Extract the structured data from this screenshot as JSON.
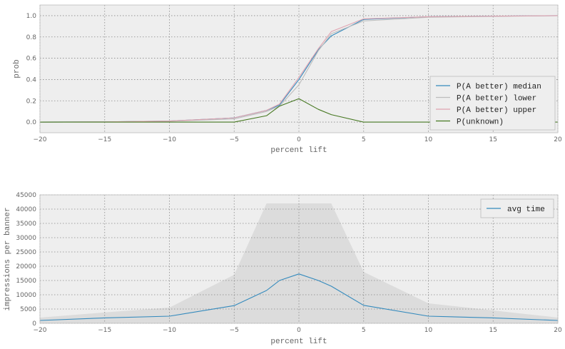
{
  "chart_data": [
    {
      "type": "line",
      "title": "",
      "xlabel": "percent lift",
      "ylabel": "prob",
      "xlim": [
        -20,
        20
      ],
      "ylim": [
        -0.1,
        1.1
      ],
      "xticks": [
        -20,
        -15,
        -10,
        -5,
        0,
        5,
        10,
        15,
        20
      ],
      "xtick_labels": [
        "−20",
        "−15",
        "−10",
        "−5",
        "0",
        "5",
        "10",
        "15",
        "20"
      ],
      "yticks": [
        0.0,
        0.2,
        0.4,
        0.6,
        0.8,
        1.0
      ],
      "ytick_labels": [
        "0.0",
        "0.2",
        "0.4",
        "0.6",
        "0.8",
        "1.0"
      ],
      "grid": true,
      "legend_position": "lower-right",
      "x": [
        -20,
        -15,
        -10,
        -5,
        -2.5,
        -1.5,
        0,
        1.5,
        2.5,
        5,
        10,
        15,
        20
      ],
      "series": [
        {
          "name": "P(A better) median",
          "color": "#348abd",
          "values": [
            0.0,
            0.002,
            0.01,
            0.04,
            0.11,
            0.16,
            0.4,
            0.68,
            0.81,
            0.965,
            0.99,
            0.995,
            1.0
          ]
        },
        {
          "name": "P(A better) lower",
          "color": "#bcbcbc",
          "values": [
            0.0,
            0.002,
            0.008,
            0.03,
            0.1,
            0.15,
            0.35,
            0.67,
            0.83,
            0.95,
            0.985,
            0.993,
            1.0
          ]
        },
        {
          "name": "P(A better) upper",
          "color": "#e0a3b0",
          "values": [
            0.0,
            0.002,
            0.01,
            0.04,
            0.11,
            0.17,
            0.42,
            0.69,
            0.85,
            0.97,
            0.99,
            0.995,
            1.0
          ]
        },
        {
          "name": "P(unknown)",
          "color": "#467821",
          "values": [
            0.0,
            0.0,
            0.0,
            0.0,
            0.06,
            0.15,
            0.22,
            0.12,
            0.07,
            0.0,
            0.0,
            0.0,
            0.0
          ]
        }
      ]
    },
    {
      "type": "area",
      "title": "",
      "xlabel": "percent lift",
      "ylabel": "impressions per banner",
      "xlim": [
        -20,
        20
      ],
      "ylim": [
        0,
        45000
      ],
      "xticks": [
        -20,
        -15,
        -10,
        -5,
        0,
        5,
        10,
        15,
        20
      ],
      "xtick_labels": [
        "−20",
        "−15",
        "−10",
        "−5",
        "0",
        "5",
        "10",
        "15",
        "20"
      ],
      "yticks": [
        0,
        5000,
        10000,
        15000,
        20000,
        25000,
        30000,
        35000,
        40000,
        45000
      ],
      "ytick_labels": [
        "0",
        "5000",
        "10000",
        "15000",
        "20000",
        "25000",
        "30000",
        "35000",
        "40000",
        "45000"
      ],
      "grid": true,
      "legend_position": "top-right",
      "x": [
        -20,
        -15,
        -10,
        -5,
        -2.5,
        -1.5,
        0,
        1.5,
        2.5,
        5,
        10,
        15,
        20
      ],
      "series": [
        {
          "name": "avg time",
          "color": "#348abd",
          "values": [
            1000,
            1900,
            2500,
            6200,
            11500,
            15000,
            17300,
            15000,
            13000,
            6300,
            2500,
            1900,
            1000
          ]
        }
      ],
      "band": {
        "color": "#dcdcdc",
        "lower": [
          0,
          0,
          0,
          0,
          0,
          0,
          0,
          0,
          0,
          0,
          0,
          0,
          0
        ],
        "upper": [
          2000,
          3800,
          5500,
          17000,
          42000,
          42000,
          42000,
          42000,
          42000,
          18000,
          7000,
          4500,
          2000
        ]
      }
    }
  ]
}
